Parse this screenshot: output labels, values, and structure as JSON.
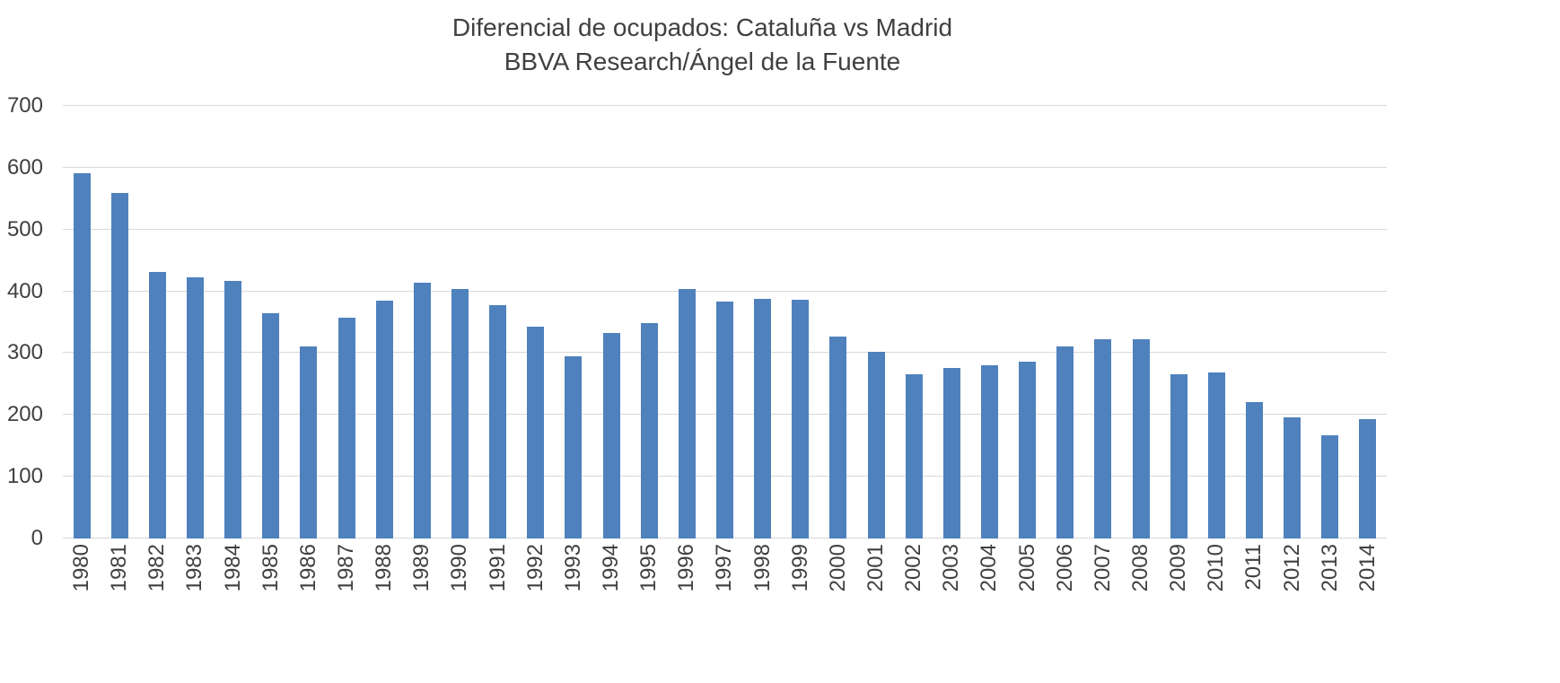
{
  "chart_data": {
    "type": "bar",
    "title": "Diferencial de ocupados: Cataluña vs Madrid",
    "subtitle": "BBVA Research/Ángel de la Fuente",
    "categories": [
      "1980",
      "1981",
      "1982",
      "1983",
      "1984",
      "1985",
      "1986",
      "1987",
      "1988",
      "1989",
      "1990",
      "1991",
      "1992",
      "1993",
      "1994",
      "1995",
      "1996",
      "1997",
      "1998",
      "1999",
      "2000",
      "2001",
      "2002",
      "2003",
      "2004",
      "2005",
      "2006",
      "2007",
      "2008",
      "2009",
      "2010",
      "2011",
      "2012",
      "2013",
      "2014"
    ],
    "values": [
      591,
      559,
      431,
      422,
      417,
      364,
      311,
      357,
      385,
      414,
      404,
      378,
      343,
      295,
      333,
      349,
      404,
      383,
      388,
      386,
      327,
      302,
      266,
      276,
      280,
      286,
      311,
      322,
      322,
      266,
      268,
      221,
      196,
      167,
      193
    ],
    "xlabel": "",
    "ylabel": "",
    "ylim": [
      0,
      700
    ],
    "ytick_interval": 100,
    "grid": true,
    "legend": "none",
    "bar_color": "#4F81BD",
    "grid_color": "#D9D9D9",
    "text_color": "#404040"
  }
}
